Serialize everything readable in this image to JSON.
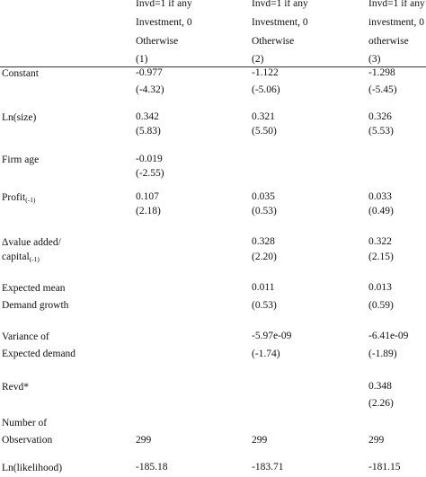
{
  "columns": [
    {
      "line1": "Invd=1 if any",
      "line2": "Investment, 0",
      "line3": "Otherwise",
      "num": "(1)"
    },
    {
      "line1": "Invd=1 if any",
      "line2": "Investment, 0",
      "line3": "Otherwise",
      "num": "(2)"
    },
    {
      "line1": "Invd=1 if any",
      "line2": "investment, 0",
      "line3": "otherwise",
      "num": "(3)"
    }
  ],
  "rows": [
    {
      "label": "Constant",
      "c1": "-0.977",
      "c1_t": "(-4.32)",
      "c2": "-1.122",
      "c2_t": "(-5.06)",
      "c3": "-1.298",
      "c3_t": "(-5.45)"
    },
    {
      "label": "Ln(size)",
      "c1": "0.342",
      "c1_t": "(5.83)",
      "c2": "0.321",
      "c2_t": "(5.50)",
      "c3": "0.326",
      "c3_t": "(5.53)"
    },
    {
      "label": "Firm age",
      "c1": "-0.019",
      "c1_t": "(-2.55)"
    },
    {
      "label": "Profit",
      "label_sub": "(-1)",
      "c1": "0.107",
      "c1_t": "(2.18)",
      "c2": "0.035",
      "c2_t": "(0.53)",
      "c3": "0.033",
      "c3_t": "(0.49)"
    },
    {
      "label": "Δvalue added/",
      "label2": "capital",
      "label2_sub": "(-1)",
      "c2": "0.328",
      "c2_t": "(2.20)",
      "c3": "0.322",
      "c3_t": "(2.15)"
    },
    {
      "label": "Expected mean",
      "label2": "Demand growth",
      "c2": "0.011",
      "c2_t": "(0.53)",
      "c3": "0.013",
      "c3_t": "(0.59)"
    },
    {
      "label": "Variance of",
      "label2": "Expected demand",
      "c2": "-5.97e-09",
      "c2_t": "(-1.74)",
      "c3": "-6.41e-09",
      "c3_t": "(-1.89)"
    },
    {
      "label": "Revd*",
      "c3": "0.348",
      "c3_t": "(2.26)"
    },
    {
      "label": "Number of",
      "label2": "Observation",
      "c1": "299",
      "c2": "299",
      "c3": "299"
    },
    {
      "label": "Ln(likelihood)",
      "c1": "-185.18",
      "c2": "-183.71",
      "c3": "-181.15"
    }
  ]
}
